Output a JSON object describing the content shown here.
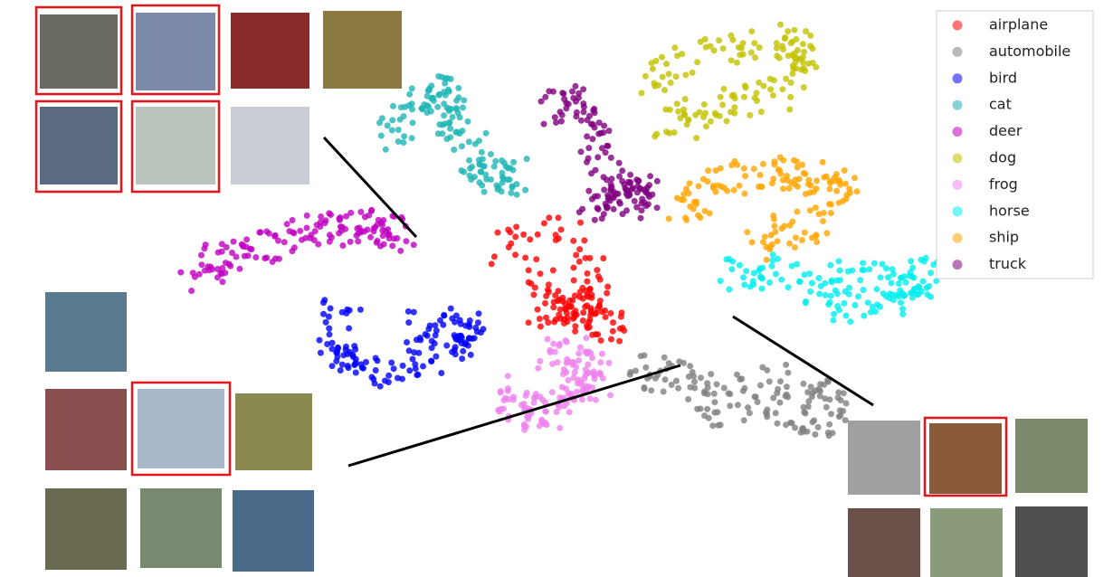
{
  "legend": {
    "entries": [
      {
        "label": "airplane",
        "color": "#ff0000"
      },
      {
        "label": "automobile",
        "color": "#808080"
      },
      {
        "label": "bird",
        "color": "#0000ff"
      },
      {
        "label": "cat",
        "color": "#1fb5b5"
      },
      {
        "label": "deer",
        "color": "#c000c0"
      },
      {
        "label": "dog",
        "color": "#c2c200"
      },
      {
        "label": "frog",
        "color": "#ee82ee"
      },
      {
        "label": "horse",
        "color": "#00eeee"
      },
      {
        "label": "ship",
        "color": "#ffa500"
      },
      {
        "label": "truck",
        "color": "#800080"
      }
    ]
  }
}
